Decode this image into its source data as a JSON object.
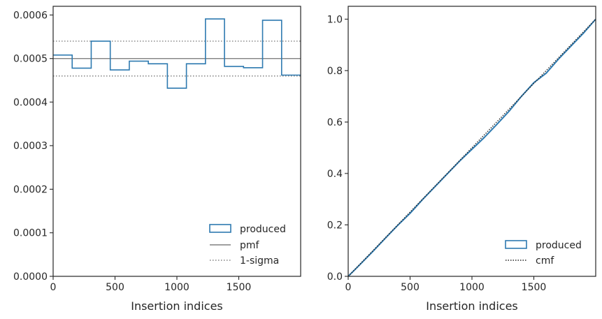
{
  "chart_data": [
    {
      "type": "histogram-step",
      "xlabel": "Insertion indices",
      "ylabel": "",
      "xlim": [
        0,
        2000
      ],
      "ylim": [
        0,
        0.00062
      ],
      "xticks": [
        0,
        500,
        1000,
        1500
      ],
      "xtick_labels": [
        "0",
        "500",
        "1000",
        "1500"
      ],
      "yticks": [
        0,
        0.0001,
        0.0002,
        0.0003,
        0.0004,
        0.0005,
        0.0006
      ],
      "ytick_labels": [
        "0.0000",
        "0.0001",
        "0.0002",
        "0.0003",
        "0.0004",
        "0.0005",
        "0.0006"
      ],
      "bin_edges": [
        0,
        153.8,
        307.7,
        461.5,
        615.4,
        769.2,
        923.1,
        1076.9,
        1230.8,
        1384.6,
        1538.5,
        1692.3,
        1846.2,
        2000
      ],
      "series": [
        {
          "name": "produced",
          "values": [
            0.000508,
            0.000478,
            0.00054,
            0.000474,
            0.000494,
            0.000488,
            0.000432,
            0.000488,
            0.000591,
            0.000482,
            0.000479,
            0.000588,
            0.000462
          ]
        }
      ],
      "reference_lines": [
        {
          "name": "pmf",
          "y": 0.0005,
          "style": "solid",
          "color": "#808080"
        },
        {
          "name": "1-sigma",
          "y": 0.00054,
          "style": "dotted",
          "color": "#808080"
        },
        {
          "name": "",
          "y": 0.00046,
          "style": "dotted",
          "color": "#808080"
        }
      ],
      "legend": {
        "placement": "lower-right",
        "entries": [
          {
            "label": "produced",
            "kind": "patch"
          },
          {
            "label": "pmf",
            "kind": "solid-line"
          },
          {
            "label": "1-sigma",
            "kind": "dotted-line"
          }
        ]
      },
      "colors": {
        "produced": "#2e7ab0",
        "reference": "#808080"
      },
      "grid": false
    },
    {
      "type": "line",
      "xlabel": "Insertion indices",
      "ylabel": "",
      "xlim": [
        0,
        2000
      ],
      "ylim": [
        0,
        1.05
      ],
      "xticks": [
        0,
        500,
        1000,
        1500
      ],
      "xtick_labels": [
        "0",
        "500",
        "1000",
        "1500"
      ],
      "yticks": [
        0,
        0.2,
        0.4,
        0.6,
        0.8,
        1.0
      ],
      "ytick_labels": [
        "0.0",
        "0.2",
        "0.4",
        "0.6",
        "0.8",
        "1.0"
      ],
      "series": [
        {
          "name": "produced",
          "style": "solid",
          "x": [
            0,
            100,
            200,
            300,
            400,
            500,
            600,
            700,
            800,
            900,
            1000,
            1100,
            1200,
            1300,
            1400,
            1500,
            1600,
            1700,
            1800,
            1900,
            2000
          ],
          "y": [
            0,
            0.048,
            0.097,
            0.148,
            0.198,
            0.245,
            0.298,
            0.348,
            0.398,
            0.448,
            0.494,
            0.54,
            0.59,
            0.642,
            0.7,
            0.753,
            0.79,
            0.845,
            0.895,
            0.945,
            1.0
          ]
        },
        {
          "name": "cmf",
          "style": "dotted",
          "x": [
            0,
            2000
          ],
          "y": [
            0,
            1.0
          ]
        }
      ],
      "legend": {
        "placement": "lower-right",
        "entries": [
          {
            "label": "produced",
            "kind": "patch"
          },
          {
            "label": "cmf",
            "kind": "dotted-line"
          }
        ]
      },
      "colors": {
        "produced": "#2e7ab0",
        "cmf": "#262626"
      },
      "grid": false
    }
  ]
}
